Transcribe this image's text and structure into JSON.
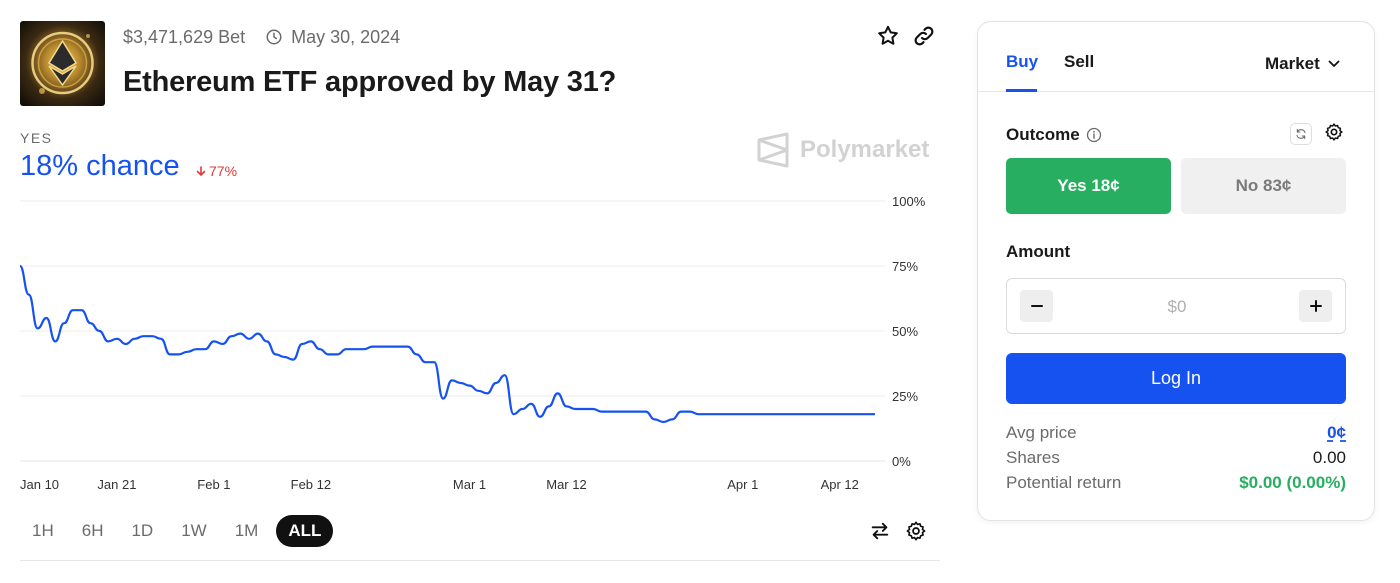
{
  "market": {
    "volume": "$3,471,629 Bet",
    "date": "May 30, 2024",
    "title": "Ethereum ETF approved by May 31?",
    "thumbnail_icon": "ethereum-coin-image"
  },
  "top_actions": {
    "star_icon": "star-icon",
    "link_icon": "link-icon"
  },
  "summary": {
    "outcome_label": "YES",
    "chance": "18% chance",
    "change": "77%",
    "change_color": "#e23838",
    "accent": "#1652f0"
  },
  "watermark": {
    "text": "Polymarket"
  },
  "chart_data": {
    "type": "line",
    "x_labels": [
      "Jan 10",
      "Jan 21",
      "Feb 1",
      "Feb 12",
      "Mar 1",
      "Mar 12",
      "Apr 1",
      "Apr 12"
    ],
    "y_labels": [
      "100%",
      "75%",
      "50%",
      "25%",
      "0%"
    ],
    "ylim": [
      0,
      100
    ],
    "grid": true,
    "series": [
      {
        "color": "#1652f0",
        "x": [
          "Jan 10",
          "Jan 11",
          "Jan 12",
          "Jan 13",
          "Jan 14",
          "Jan 15",
          "Jan 16",
          "Jan 17",
          "Jan 18",
          "Jan 19",
          "Jan 20",
          "Jan 21",
          "Jan 22",
          "Jan 23",
          "Jan 24",
          "Jan 25",
          "Jan 26",
          "Jan 27",
          "Jan 28",
          "Jan 29",
          "Jan 30",
          "Jan 31",
          "Feb 1",
          "Feb 2",
          "Feb 3",
          "Feb 4",
          "Feb 5",
          "Feb 6",
          "Feb 7",
          "Feb 8",
          "Feb 9",
          "Feb 10",
          "Feb 11",
          "Feb 12",
          "Feb 13",
          "Feb 14",
          "Feb 15",
          "Feb 16",
          "Feb 17",
          "Feb 18",
          "Feb 19",
          "Feb 20",
          "Feb 21",
          "Feb 22",
          "Feb 23",
          "Feb 24",
          "Feb 25",
          "Feb 26",
          "Feb 27",
          "Feb 28",
          "Feb 29",
          "Mar 1",
          "Mar 2",
          "Mar 3",
          "Mar 4",
          "Mar 5",
          "Mar 6",
          "Mar 7",
          "Mar 8",
          "Mar 9",
          "Mar 10",
          "Mar 11",
          "Mar 12",
          "Mar 13",
          "Mar 14",
          "Mar 15",
          "Mar 16",
          "Mar 17",
          "Mar 18",
          "Mar 19",
          "Mar 20",
          "Mar 21",
          "Mar 22",
          "Mar 23",
          "Mar 24",
          "Mar 25",
          "Mar 26",
          "Mar 27",
          "Mar 28",
          "Mar 29",
          "Mar 30",
          "Mar 31",
          "Apr 1",
          "Apr 2",
          "Apr 3",
          "Apr 4",
          "Apr 5",
          "Apr 6",
          "Apr 7",
          "Apr 8",
          "Apr 9",
          "Apr 10",
          "Apr 11",
          "Apr 12",
          "Apr 13",
          "Apr 14",
          "Apr 15",
          "Apr 16"
        ],
        "values": [
          75,
          64,
          51,
          55,
          46,
          53,
          58,
          58,
          53,
          50,
          46,
          47,
          45,
          47,
          48,
          48,
          47,
          41,
          41,
          42,
          43,
          43,
          46,
          45,
          48,
          49,
          47,
          49,
          46,
          41,
          40,
          39,
          45,
          46,
          43,
          41,
          41,
          43,
          43,
          43,
          44,
          44,
          44,
          44,
          44,
          41,
          38,
          38,
          24,
          31,
          30,
          29,
          27,
          26,
          30,
          33,
          18,
          20,
          22,
          17,
          21,
          26,
          21,
          20,
          20,
          20,
          19,
          19,
          19,
          19,
          19,
          19,
          16,
          15,
          16,
          19,
          19,
          18,
          18,
          18,
          18,
          18,
          18,
          18,
          18,
          18,
          18,
          18,
          18,
          18,
          18,
          18,
          18,
          18,
          18,
          18,
          18,
          18
        ]
      }
    ]
  },
  "ranges": [
    "1H",
    "6H",
    "1D",
    "1W",
    "1M",
    "ALL"
  ],
  "active_range": "ALL",
  "chart_actions": {
    "swap_icon": "swap-arrows-icon",
    "settings_icon": "gear-icon"
  },
  "trade": {
    "tab_buy": "Buy",
    "tab_sell": "Sell",
    "order_type": "Market",
    "outcome_label": "Outcome",
    "yes_label": "Yes 18¢",
    "no_label": "No 83¢",
    "amount_label": "Amount",
    "amount_placeholder": "$0",
    "login_label": "Log In",
    "avg_price_label": "Avg price",
    "avg_price_value": "0¢",
    "shares_label": "Shares",
    "shares_value": "0.00",
    "return_label": "Potential return",
    "return_value": "$0.00 (0.00%)",
    "yes_color": "#27ae60",
    "primary_color": "#1652f0"
  }
}
